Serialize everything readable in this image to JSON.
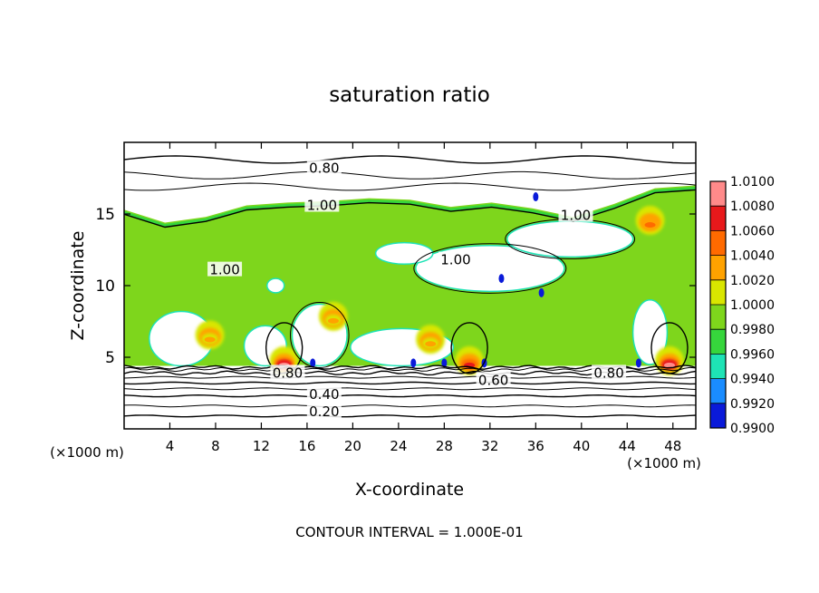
{
  "chart_data": {
    "type": "heatmap",
    "title": "saturation ratio",
    "xlabel": "X-coordinate",
    "ylabel": "Z-coordinate",
    "x_unit_label": "(×1000 m)",
    "y_unit_label": "(×1000 m)",
    "xlim": [
      0,
      50
    ],
    "ylim": [
      0,
      20
    ],
    "x_ticks": [
      4,
      8,
      12,
      16,
      20,
      24,
      28,
      32,
      36,
      40,
      44,
      48
    ],
    "y_ticks": [
      5,
      10,
      15
    ],
    "footer": "CONTOUR INTERVAL = 1.000E-01",
    "colorbar": {
      "levels": [
        "1.0100",
        "1.0080",
        "1.0060",
        "1.0040",
        "1.0020",
        "1.0000",
        "0.9980",
        "0.9960",
        "0.9940",
        "0.9920",
        "0.9900"
      ],
      "colors": [
        "#ff8a8a",
        "#e8191b",
        "#ff6a00",
        "#ffa200",
        "#d9e600",
        "#7ed61c",
        "#36d63c",
        "#1ee3b5",
        "#1a8cff",
        "#0a1ad9",
        "#5a1a9c"
      ],
      "range": [
        0.99,
        1.01
      ]
    },
    "contour_labels": [
      {
        "text": "0.80",
        "x": 17.5,
        "z": 18.2
      },
      {
        "text": "1.00",
        "x": 17.3,
        "z": 15.6
      },
      {
        "text": "1.00",
        "x": 8.8,
        "z": 11.1
      },
      {
        "text": "1.00",
        "x": 29.0,
        "z": 11.8
      },
      {
        "text": "1.00",
        "x": 39.5,
        "z": 14.9
      },
      {
        "text": "0.80",
        "x": 14.3,
        "z": 3.9
      },
      {
        "text": "0.80",
        "x": 42.4,
        "z": 3.9
      },
      {
        "text": "0.60",
        "x": 32.3,
        "z": 3.4
      },
      {
        "text": "0.40",
        "x": 17.5,
        "z": 2.4
      },
      {
        "text": "0.20",
        "x": 17.5,
        "z": 1.2
      }
    ],
    "cloud_top_z": [
      15.3,
      14.4,
      14.8,
      15.6,
      15.8,
      15.9,
      16.1,
      16.0,
      15.5,
      15.8,
      15.4,
      14.8,
      15.7,
      16.8,
      17.0
    ],
    "clear_patches": [
      {
        "x": [
          14.7,
          19.5
        ],
        "z": [
          4.4,
          8.7
        ]
      },
      {
        "x": [
          25.5,
          38.5
        ],
        "z": [
          9.6,
          12.8
        ]
      },
      {
        "x": [
          33.5,
          44.5
        ],
        "z": [
          12.0,
          14.5
        ]
      },
      {
        "x": [
          2.2,
          7.8
        ],
        "z": [
          4.4,
          8.2
        ]
      },
      {
        "x": [
          10.5,
          14.2
        ],
        "z": [
          4.4,
          7.2
        ]
      },
      {
        "x": [
          19.8,
          28.8
        ],
        "z": [
          4.4,
          7.0
        ]
      },
      {
        "x": [
          22.0,
          27.0
        ],
        "z": [
          11.5,
          13.0
        ]
      },
      {
        "x": [
          44.5,
          47.5
        ],
        "z": [
          4.5,
          9.0
        ]
      },
      {
        "x": [
          12.5,
          14.0
        ],
        "z": [
          9.5,
          10.5
        ]
      }
    ],
    "hotspots": [
      {
        "x": 14.0,
        "z": 4.5,
        "value": 1.01
      },
      {
        "x": 30.2,
        "z": 4.5,
        "value": 1.008
      },
      {
        "x": 47.7,
        "z": 4.5,
        "value": 1.01
      },
      {
        "x": 7.5,
        "z": 6.3,
        "value": 1.005
      },
      {
        "x": 18.3,
        "z": 7.6,
        "value": 1.004
      },
      {
        "x": 26.8,
        "z": 6.0,
        "value": 1.004
      },
      {
        "x": 46.0,
        "z": 14.3,
        "value": 1.006
      }
    ],
    "sink_spots": [
      {
        "x": 16.5,
        "z": 4.6
      },
      {
        "x": 25.3,
        "z": 4.6
      },
      {
        "x": 28.0,
        "z": 4.6
      },
      {
        "x": 31.5,
        "z": 4.6
      },
      {
        "x": 45.0,
        "z": 4.6
      },
      {
        "x": 36.5,
        "z": 9.5
      },
      {
        "x": 33.0,
        "z": 10.5
      },
      {
        "x": 36.0,
        "z": 16.2
      }
    ],
    "grid": false,
    "legend": "right"
  }
}
